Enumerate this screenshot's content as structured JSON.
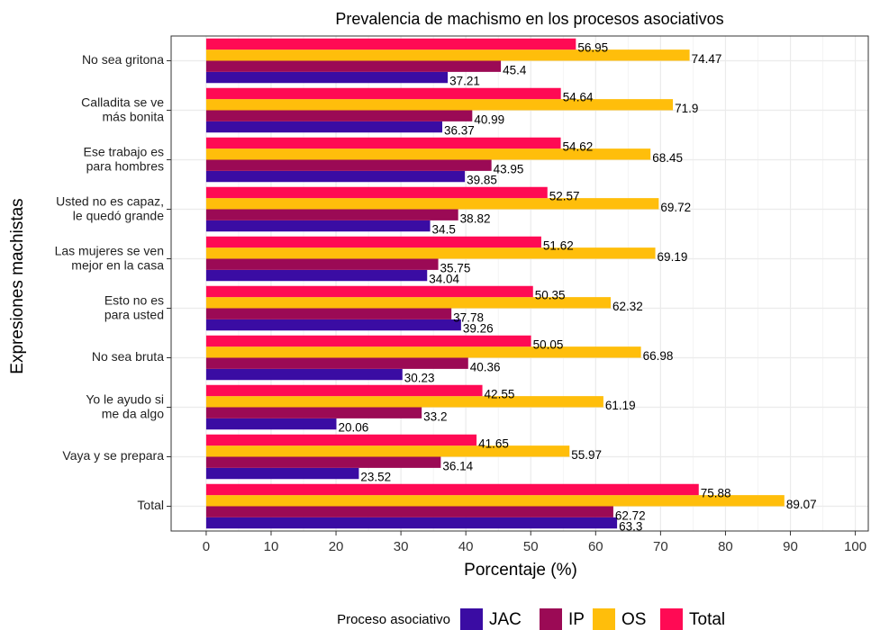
{
  "chart_data": {
    "type": "barh",
    "title": "Prevalencia de machismo en los procesos asociativos",
    "xlabel": "Porcentaje (%)",
    "ylabel": "Expresiones machistas",
    "legend_title": "Proceso asociativo",
    "legend_position": "bottom",
    "grid": true,
    "categories": [
      "No sea gritona",
      "Calladita se ve\nmás bonita",
      "Ese trabajo es\npara hombres",
      "Usted no es capaz,\nle quedó grande",
      "Las mujeres se ven\nmejor en la casa",
      "Esto no es\npara usted",
      "No sea bruta",
      "Yo le ayudo si\nme da algo",
      "Vaya y se prepara",
      "Total"
    ],
    "series": [
      {
        "name": "JAC",
        "color": "#3a0ca3",
        "values": [
          37.21,
          36.37,
          39.85,
          34.5,
          34.04,
          39.26,
          30.23,
          20.06,
          23.52,
          63.3
        ]
      },
      {
        "name": "IP",
        "color": "#9b0a55",
        "values": [
          45.4,
          40.99,
          43.95,
          38.82,
          35.75,
          37.78,
          40.36,
          33.2,
          36.14,
          62.72
        ]
      },
      {
        "name": "OS",
        "color": "#ffbe0b",
        "values": [
          74.47,
          71.9,
          68.45,
          69.72,
          69.19,
          62.32,
          66.98,
          61.19,
          55.97,
          89.07
        ]
      },
      {
        "name": "Total",
        "color": "#ff0a54",
        "values": [
          56.95,
          54.64,
          54.62,
          52.57,
          51.62,
          50.35,
          50.05,
          42.55,
          41.65,
          75.88
        ]
      }
    ],
    "xlim": [
      -5.4,
      102
    ],
    "xticks": [
      0,
      10,
      20,
      30,
      40,
      50,
      60,
      70,
      80,
      90,
      100
    ]
  }
}
